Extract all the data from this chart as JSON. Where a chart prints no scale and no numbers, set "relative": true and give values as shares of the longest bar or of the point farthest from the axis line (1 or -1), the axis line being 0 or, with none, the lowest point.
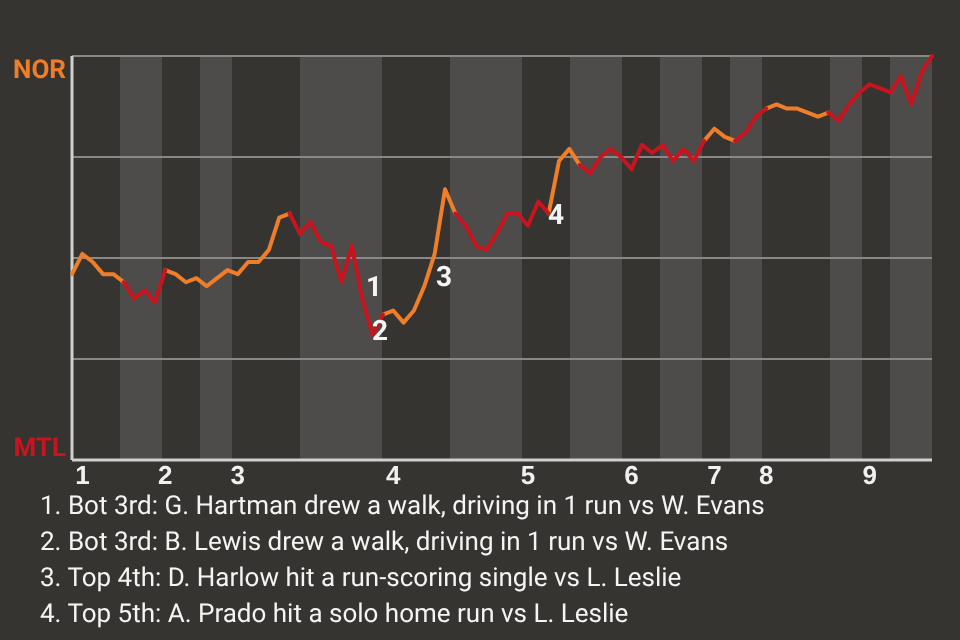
{
  "chart_data": {
    "type": "line",
    "relative": true,
    "categories": [
      null,
      "1",
      null,
      null,
      null,
      null,
      null,
      null,
      null,
      "2",
      null,
      null,
      null,
      null,
      null,
      null,
      "3",
      null,
      null,
      null,
      null,
      null,
      null,
      null,
      null,
      null,
      null,
      null,
      null,
      null,
      null,
      "4",
      null,
      null,
      null,
      null,
      null,
      null,
      null,
      null,
      null,
      null,
      null,
      null,
      "5",
      null,
      null,
      null,
      null,
      null,
      null,
      null,
      null,
      null,
      "6",
      null,
      null,
      null,
      null,
      null,
      null,
      null,
      "7",
      null,
      null,
      null,
      null,
      "8",
      null,
      null,
      null,
      null,
      null,
      null,
      null,
      null,
      null,
      "9",
      null,
      null,
      null,
      null,
      null,
      null
    ],
    "series": [
      {
        "color": "#f07d28",
        "values": [
          0.46,
          0.51,
          0.49,
          0.46,
          0.46,
          0.44,
          null,
          null,
          null,
          0.47,
          0.46,
          0.44,
          0.45,
          0.43,
          0.45,
          0.47,
          0.46,
          0.49,
          0.49,
          0.52,
          0.6,
          0.61,
          null,
          null,
          null,
          null,
          null,
          null,
          null,
          null,
          0.36,
          0.37,
          0.34,
          0.37,
          0.43,
          0.51,
          0.67,
          0.61,
          null,
          null,
          null,
          null,
          null,
          null,
          null,
          null,
          0.61,
          0.74,
          0.77,
          0.73,
          null,
          null,
          null,
          null,
          null,
          null,
          null,
          null,
          null,
          null,
          null,
          0.79,
          0.82,
          0.8,
          0.79,
          null,
          null,
          0.87,
          0.88,
          0.87,
          0.87,
          0.86,
          0.85,
          0.86,
          null,
          null,
          null,
          null,
          null,
          null,
          null,
          null,
          null,
          null
        ]
      },
      {
        "color": "#c8141e",
        "values": [
          null,
          null,
          null,
          null,
          null,
          0.44,
          0.4,
          0.42,
          0.39,
          0.47,
          null,
          null,
          null,
          null,
          null,
          null,
          null,
          null,
          null,
          null,
          null,
          0.61,
          0.56,
          0.59,
          0.54,
          0.53,
          0.44,
          0.53,
          0.4,
          0.31,
          0.36,
          null,
          null,
          null,
          null,
          null,
          null,
          0.61,
          0.58,
          0.53,
          0.52,
          0.56,
          0.61,
          0.61,
          0.58,
          0.64,
          0.61,
          null,
          null,
          0.73,
          0.71,
          0.75,
          0.77,
          0.75,
          0.72,
          0.78,
          0.76,
          0.78,
          0.74,
          0.77,
          0.74,
          0.79,
          null,
          null,
          0.79,
          0.81,
          0.85,
          0.87,
          null,
          null,
          null,
          null,
          null,
          0.86,
          0.84,
          0.88,
          0.91,
          0.93,
          0.92,
          0.91,
          0.95,
          0.88,
          0.96,
          1
        ]
      }
    ],
    "ref_lines": [
      {
        "axis": "y",
        "value": 0.25,
        "color": "#8a8886"
      },
      {
        "axis": "y",
        "value": 0.5,
        "color": "#8a8886"
      },
      {
        "axis": "y",
        "value": 0.75,
        "color": "#8a8886"
      },
      {
        "axis": "y",
        "value": 1,
        "color": "#8a8886"
      }
    ],
    "annotations": [
      "NOR",
      "MTL",
      "1",
      "2",
      "3",
      "4",
      "1. Bot 3rd: G. Hartman drew a walk, driving in 1 run vs W. Evans",
      "2. Bot 3rd: B. Lewis drew a walk, driving in 1 run vs W. Evans",
      "3. Top 4th: D. Harlow hit a run-scoring single vs L. Leslie",
      "4. Top 5th: A. Prado hit a solo home run vs L. Leslie"
    ]
  }
}
